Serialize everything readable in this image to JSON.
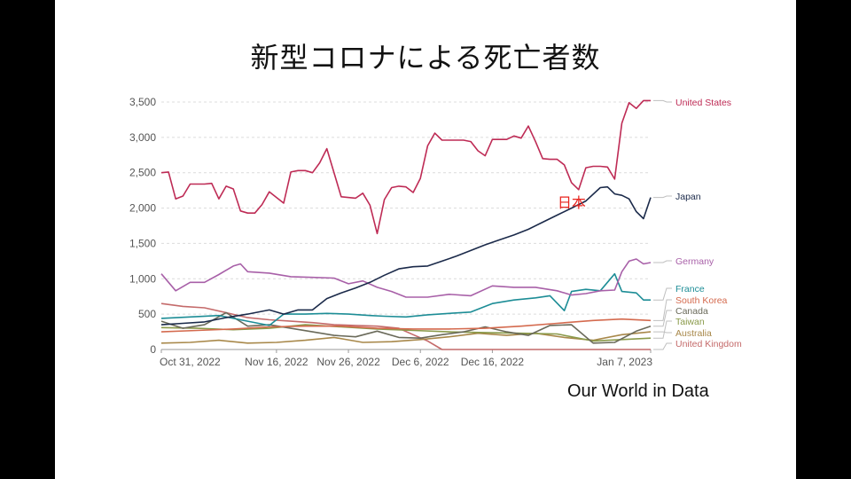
{
  "title": "新型コロナによる死亡者数",
  "source": "Our World in Data",
  "chart_data": {
    "type": "line",
    "ylim": [
      0,
      3500
    ],
    "yticks": [
      0,
      500,
      1000,
      1500,
      2000,
      2500,
      3000,
      3500
    ],
    "ytick_labels": [
      "0",
      "500",
      "1,000",
      "1,500",
      "2,000",
      "2,500",
      "3,000",
      "3,500"
    ],
    "xlim": [
      "2022-10-31",
      "2023-01-07"
    ],
    "xticks": [
      {
        "date": "2022-10-31",
        "label": "Oct 31, 2022"
      },
      {
        "date": "2022-11-16",
        "label": "Nov 16, 2022"
      },
      {
        "date": "2022-11-26",
        "label": "Nov 26, 2022"
      },
      {
        "date": "2022-12-06",
        "label": "Dec 6, 2022"
      },
      {
        "date": "2022-12-16",
        "label": "Dec 16, 2022"
      },
      {
        "date": "2023-01-07",
        "label": "Jan 7, 2023"
      }
    ],
    "grid": true,
    "annotation": {
      "text": "日本",
      "color": "#e8231d",
      "date": "2022-12-29",
      "value": 2080
    },
    "series": [
      {
        "name": "United States",
        "color": "#be2b55",
        "points": [
          [
            "2022-10-31",
            2500
          ],
          [
            "2022-11-01",
            2510
          ],
          [
            "2022-11-02",
            2130
          ],
          [
            "2022-11-03",
            2170
          ],
          [
            "2022-11-04",
            2340
          ],
          [
            "2022-11-05",
            2340
          ],
          [
            "2022-11-06",
            2340
          ],
          [
            "2022-11-07",
            2350
          ],
          [
            "2022-11-08",
            2130
          ],
          [
            "2022-11-09",
            2310
          ],
          [
            "2022-11-10",
            2270
          ],
          [
            "2022-11-11",
            1960
          ],
          [
            "2022-11-12",
            1930
          ],
          [
            "2022-11-13",
            1930
          ],
          [
            "2022-11-14",
            2050
          ],
          [
            "2022-11-15",
            2230
          ],
          [
            "2022-11-17",
            2070
          ],
          [
            "2022-11-18",
            2510
          ],
          [
            "2022-11-19",
            2530
          ],
          [
            "2022-11-20",
            2530
          ],
          [
            "2022-11-21",
            2500
          ],
          [
            "2022-11-22",
            2640
          ],
          [
            "2022-11-23",
            2840
          ],
          [
            "2022-11-25",
            2160
          ],
          [
            "2022-11-27",
            2140
          ],
          [
            "2022-11-28",
            2210
          ],
          [
            "2022-11-29",
            2040
          ],
          [
            "2022-11-30",
            1640
          ],
          [
            "2022-12-01",
            2120
          ],
          [
            "2022-12-02",
            2290
          ],
          [
            "2022-12-03",
            2310
          ],
          [
            "2022-12-04",
            2300
          ],
          [
            "2022-12-05",
            2220
          ],
          [
            "2022-12-06",
            2420
          ],
          [
            "2022-12-07",
            2880
          ],
          [
            "2022-12-08",
            3060
          ],
          [
            "2022-12-09",
            2960
          ],
          [
            "2022-12-10",
            2960
          ],
          [
            "2022-12-11",
            2960
          ],
          [
            "2022-12-12",
            2960
          ],
          [
            "2022-12-13",
            2940
          ],
          [
            "2022-12-14",
            2810
          ],
          [
            "2022-12-15",
            2740
          ],
          [
            "2022-12-16",
            2970
          ],
          [
            "2022-12-17",
            2970
          ],
          [
            "2022-12-18",
            2970
          ],
          [
            "2022-12-19",
            3020
          ],
          [
            "2022-12-20",
            2990
          ],
          [
            "2022-12-21",
            3160
          ],
          [
            "2022-12-22",
            2940
          ],
          [
            "2022-12-23",
            2700
          ],
          [
            "2022-12-24",
            2690
          ],
          [
            "2022-12-25",
            2690
          ],
          [
            "2022-12-26",
            2610
          ],
          [
            "2022-12-27",
            2360
          ],
          [
            "2022-12-28",
            2260
          ],
          [
            "2022-12-29",
            2570
          ],
          [
            "2022-12-30",
            2590
          ],
          [
            "2022-12-31",
            2590
          ],
          [
            "2023-01-01",
            2580
          ],
          [
            "2023-01-02",
            2410
          ],
          [
            "2023-01-03",
            3200
          ],
          [
            "2023-01-04",
            3490
          ],
          [
            "2023-01-05",
            3410
          ],
          [
            "2023-01-06",
            3520
          ],
          [
            "2023-01-07",
            3520
          ]
        ]
      },
      {
        "name": "Japan",
        "color": "#1b2a4a",
        "points": [
          [
            "2022-10-31",
            350
          ],
          [
            "2022-11-03",
            370
          ],
          [
            "2022-11-06",
            390
          ],
          [
            "2022-11-09",
            450
          ],
          [
            "2022-11-12",
            500
          ],
          [
            "2022-11-15",
            560
          ],
          [
            "2022-11-17",
            500
          ],
          [
            "2022-11-19",
            560
          ],
          [
            "2022-11-21",
            560
          ],
          [
            "2022-11-23",
            720
          ],
          [
            "2022-11-25",
            800
          ],
          [
            "2022-11-27",
            870
          ],
          [
            "2022-11-29",
            950
          ],
          [
            "2022-12-01",
            1050
          ],
          [
            "2022-12-03",
            1140
          ],
          [
            "2022-12-05",
            1170
          ],
          [
            "2022-12-07",
            1180
          ],
          [
            "2022-12-09",
            1250
          ],
          [
            "2022-12-11",
            1320
          ],
          [
            "2022-12-13",
            1400
          ],
          [
            "2022-12-15",
            1480
          ],
          [
            "2022-12-17",
            1550
          ],
          [
            "2022-12-19",
            1620
          ],
          [
            "2022-12-21",
            1700
          ],
          [
            "2022-12-23",
            1800
          ],
          [
            "2022-12-25",
            1900
          ],
          [
            "2022-12-27",
            2000
          ],
          [
            "2022-12-29",
            2100
          ],
          [
            "2022-12-31",
            2290
          ],
          [
            "2023-01-01",
            2300
          ],
          [
            "2023-01-02",
            2200
          ],
          [
            "2023-01-03",
            2180
          ],
          [
            "2023-01-04",
            2130
          ],
          [
            "2023-01-05",
            1950
          ],
          [
            "2023-01-06",
            1850
          ],
          [
            "2023-01-07",
            2150
          ]
        ]
      },
      {
        "name": "Germany",
        "color": "#a860a8",
        "points": [
          [
            "2022-10-31",
            1070
          ],
          [
            "2022-11-02",
            830
          ],
          [
            "2022-11-04",
            950
          ],
          [
            "2022-11-06",
            950
          ],
          [
            "2022-11-08",
            1060
          ],
          [
            "2022-11-10",
            1180
          ],
          [
            "2022-11-11",
            1210
          ],
          [
            "2022-11-12",
            1100
          ],
          [
            "2022-11-15",
            1080
          ],
          [
            "2022-11-18",
            1030
          ],
          [
            "2022-11-21",
            1020
          ],
          [
            "2022-11-24",
            1010
          ],
          [
            "2022-11-26",
            930
          ],
          [
            "2022-11-28",
            970
          ],
          [
            "2022-11-30",
            880
          ],
          [
            "2022-12-02",
            820
          ],
          [
            "2022-12-04",
            740
          ],
          [
            "2022-12-07",
            740
          ],
          [
            "2022-12-10",
            780
          ],
          [
            "2022-12-13",
            760
          ],
          [
            "2022-12-16",
            900
          ],
          [
            "2022-12-19",
            880
          ],
          [
            "2022-12-22",
            880
          ],
          [
            "2022-12-25",
            830
          ],
          [
            "2022-12-27",
            770
          ],
          [
            "2022-12-29",
            790
          ],
          [
            "2022-12-31",
            830
          ],
          [
            "2023-01-02",
            840
          ],
          [
            "2023-01-03",
            1100
          ],
          [
            "2023-01-04",
            1250
          ],
          [
            "2023-01-05",
            1280
          ],
          [
            "2023-01-06",
            1210
          ],
          [
            "2023-01-07",
            1230
          ]
        ]
      },
      {
        "name": "France",
        "color": "#1d8d96",
        "points": [
          [
            "2022-10-31",
            440
          ],
          [
            "2022-11-04",
            460
          ],
          [
            "2022-11-08",
            480
          ],
          [
            "2022-11-12",
            400
          ],
          [
            "2022-11-15",
            340
          ],
          [
            "2022-11-17",
            500
          ],
          [
            "2022-11-20",
            500
          ],
          [
            "2022-11-23",
            510
          ],
          [
            "2022-11-26",
            500
          ],
          [
            "2022-11-29",
            480
          ],
          [
            "2022-12-01",
            470
          ],
          [
            "2022-12-04",
            460
          ],
          [
            "2022-12-07",
            490
          ],
          [
            "2022-12-10",
            510
          ],
          [
            "2022-12-13",
            530
          ],
          [
            "2022-12-16",
            650
          ],
          [
            "2022-12-19",
            700
          ],
          [
            "2022-12-22",
            730
          ],
          [
            "2022-12-24",
            760
          ],
          [
            "2022-12-26",
            550
          ],
          [
            "2022-12-27",
            820
          ],
          [
            "2022-12-29",
            850
          ],
          [
            "2022-12-31",
            830
          ],
          [
            "2023-01-02",
            1070
          ],
          [
            "2023-01-03",
            820
          ],
          [
            "2023-01-05",
            800
          ],
          [
            "2023-01-06",
            700
          ],
          [
            "2023-01-07",
            700
          ]
        ]
      },
      {
        "name": "South Korea",
        "color": "#d46a4e",
        "points": [
          [
            "2022-10-31",
            250
          ],
          [
            "2022-11-05",
            270
          ],
          [
            "2022-11-10",
            290
          ],
          [
            "2022-11-15",
            320
          ],
          [
            "2022-11-20",
            330
          ],
          [
            "2022-11-25",
            330
          ],
          [
            "2022-11-30",
            300
          ],
          [
            "2022-12-05",
            290
          ],
          [
            "2022-12-10",
            290
          ],
          [
            "2022-12-15",
            300
          ],
          [
            "2022-12-20",
            330
          ],
          [
            "2022-12-25",
            370
          ],
          [
            "2022-12-30",
            410
          ],
          [
            "2023-01-03",
            430
          ],
          [
            "2023-01-07",
            410
          ]
        ]
      },
      {
        "name": "Canada",
        "color": "#6a6a5a",
        "points": [
          [
            "2022-10-31",
            400
          ],
          [
            "2022-11-03",
            300
          ],
          [
            "2022-11-06",
            350
          ],
          [
            "2022-11-09",
            520
          ],
          [
            "2022-11-12",
            330
          ],
          [
            "2022-11-15",
            350
          ],
          [
            "2022-11-18",
            300
          ],
          [
            "2022-11-21",
            250
          ],
          [
            "2022-11-24",
            200
          ],
          [
            "2022-11-27",
            180
          ],
          [
            "2022-11-30",
            260
          ],
          [
            "2022-12-03",
            170
          ],
          [
            "2022-12-06",
            160
          ],
          [
            "2022-12-09",
            210
          ],
          [
            "2022-12-12",
            250
          ],
          [
            "2022-12-15",
            320
          ],
          [
            "2022-12-18",
            250
          ],
          [
            "2022-12-21",
            200
          ],
          [
            "2022-12-24",
            340
          ],
          [
            "2022-12-27",
            350
          ],
          [
            "2022-12-30",
            90
          ],
          [
            "2023-01-02",
            100
          ],
          [
            "2023-01-05",
            260
          ],
          [
            "2023-01-07",
            330
          ]
        ]
      },
      {
        "name": "Taiwan",
        "color": "#8a9a4a",
        "points": [
          [
            "2022-10-31",
            310
          ],
          [
            "2022-11-05",
            300
          ],
          [
            "2022-11-10",
            280
          ],
          [
            "2022-11-15",
            300
          ],
          [
            "2022-11-20",
            350
          ],
          [
            "2022-11-25",
            320
          ],
          [
            "2022-11-30",
            290
          ],
          [
            "2022-12-05",
            270
          ],
          [
            "2022-12-10",
            250
          ],
          [
            "2022-12-15",
            240
          ],
          [
            "2022-12-20",
            230
          ],
          [
            "2022-12-25",
            220
          ],
          [
            "2022-12-30",
            120
          ],
          [
            "2023-01-03",
            140
          ],
          [
            "2023-01-07",
            160
          ]
        ]
      },
      {
        "name": "Australia",
        "color": "#a8884a",
        "points": [
          [
            "2022-10-31",
            90
          ],
          [
            "2022-11-04",
            100
          ],
          [
            "2022-11-08",
            130
          ],
          [
            "2022-11-12",
            90
          ],
          [
            "2022-11-16",
            100
          ],
          [
            "2022-11-20",
            130
          ],
          [
            "2022-11-24",
            170
          ],
          [
            "2022-11-28",
            100
          ],
          [
            "2022-12-02",
            110
          ],
          [
            "2022-12-06",
            140
          ],
          [
            "2022-12-10",
            180
          ],
          [
            "2022-12-14",
            230
          ],
          [
            "2022-12-18",
            200
          ],
          [
            "2022-12-22",
            230
          ],
          [
            "2022-12-26",
            170
          ],
          [
            "2022-12-30",
            130
          ],
          [
            "2023-01-03",
            210
          ],
          [
            "2023-01-07",
            250
          ]
        ]
      },
      {
        "name": "United Kingdom",
        "color": "#c46a6a",
        "points": [
          [
            "2022-10-31",
            650
          ],
          [
            "2022-11-03",
            610
          ],
          [
            "2022-11-06",
            590
          ],
          [
            "2022-11-09",
            520
          ],
          [
            "2022-11-12",
            450
          ],
          [
            "2022-11-15",
            420
          ],
          [
            "2022-11-18",
            400
          ],
          [
            "2022-11-21",
            380
          ],
          [
            "2022-11-24",
            350
          ],
          [
            "2022-11-27",
            340
          ],
          [
            "2022-11-30",
            330
          ],
          [
            "2022-12-03",
            300
          ],
          [
            "2022-12-05",
            210
          ],
          [
            "2022-12-07",
            120
          ],
          [
            "2022-12-09",
            0
          ],
          [
            "2022-12-20",
            0
          ],
          [
            "2023-01-07",
            0
          ]
        ]
      }
    ]
  }
}
